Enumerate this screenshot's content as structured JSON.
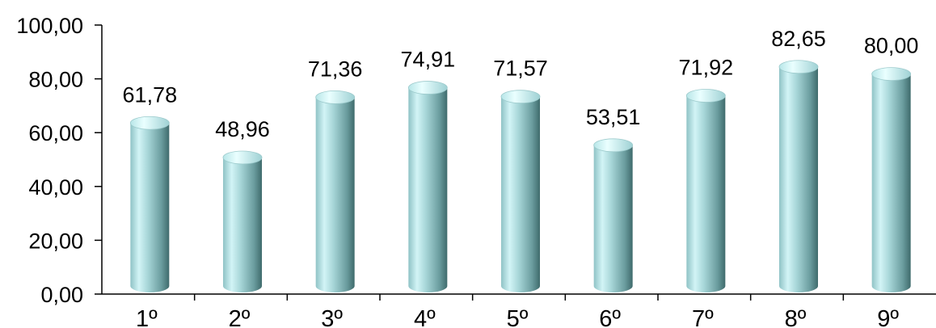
{
  "chart_data": {
    "type": "bar",
    "bar_style": "3d-cylinder",
    "categories": [
      "1º",
      "2º",
      "3º",
      "4º",
      "5º",
      "6º",
      "7º",
      "8º",
      "9º"
    ],
    "values": [
      61.78,
      48.96,
      71.36,
      74.91,
      71.57,
      53.51,
      71.92,
      82.65,
      80.0
    ],
    "value_labels": [
      "61,78",
      "48,96",
      "71,36",
      "74,91",
      "71,57",
      "53,51",
      "71,92",
      "82,65",
      "80,00"
    ],
    "y_ticks": [
      0,
      20,
      40,
      60,
      80,
      100
    ],
    "y_tick_labels": [
      "0,00",
      "20,00",
      "40,00",
      "60,00",
      "80,00",
      "100,00"
    ],
    "ylim": [
      0,
      100
    ],
    "grid": false,
    "legend": "none",
    "colors": {
      "bar_light": "#d2f4f6",
      "bar_mid": "#9ecfd2",
      "bar_dark": "#3f6b6c",
      "axis": "#000000"
    }
  }
}
